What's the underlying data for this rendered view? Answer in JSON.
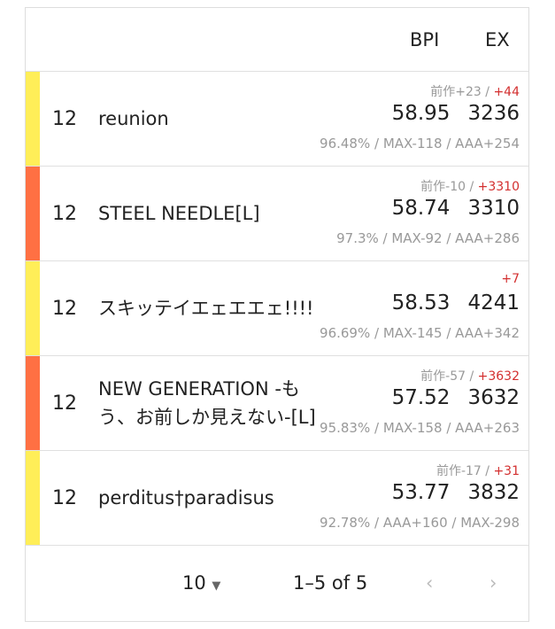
{
  "header": {
    "bpi": "BPI",
    "ex": "EX"
  },
  "colors": {
    "yellow": "#ffee58",
    "orange": "#ff7043",
    "red": "#d32f2f"
  },
  "rows": [
    {
      "lamp": "yellow",
      "level": "12",
      "title": "reunion",
      "prev": "前作+23 / ",
      "diff": "+44",
      "bpi": "58.95",
      "ex": "3236",
      "detail": "96.48% / MAX-118 / AAA+254"
    },
    {
      "lamp": "orange",
      "level": "12",
      "title": "STEEL NEEDLE[L]",
      "prev": "前作-10 / ",
      "diff": "+3310",
      "bpi": "58.74",
      "ex": "3310",
      "detail": "97.3% / MAX-92 / AAA+286"
    },
    {
      "lamp": "yellow",
      "level": "12",
      "title": "スキッテイエェエエェ!!!!",
      "prev": "",
      "diff": "+7",
      "bpi": "58.53",
      "ex": "4241",
      "detail": "96.69% / MAX-145 / AAA+342"
    },
    {
      "lamp": "orange",
      "level": "12",
      "title": "NEW GENERATION -もう、お前しか見えない-[L]",
      "prev": "前作-57 / ",
      "diff": "+3632",
      "bpi": "57.52",
      "ex": "3632",
      "detail": "95.83% / MAX-158 / AAA+263"
    },
    {
      "lamp": "yellow",
      "level": "12",
      "title": "perditus†paradisus",
      "prev": "前作-17 / ",
      "diff": "+31",
      "bpi": "53.77",
      "ex": "3832",
      "detail": "92.78% / AAA+160 / MAX-298"
    }
  ],
  "footer": {
    "rows_per_page": "10",
    "range": "1–5 of 5",
    "prev_icon": "chevron-left",
    "next_icon": "chevron-right",
    "dropdown_icon": "caret-down"
  }
}
